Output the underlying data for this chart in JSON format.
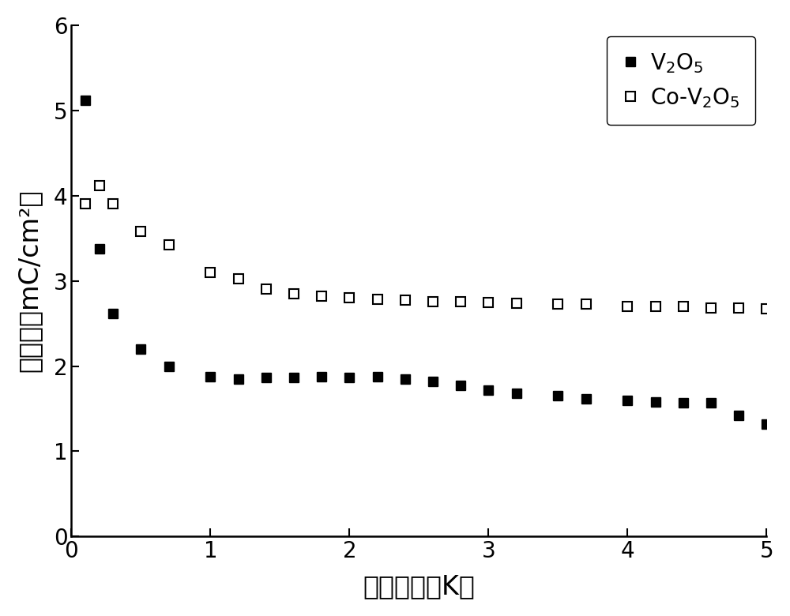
{
  "v2o5_x": [
    0.1,
    0.2,
    0.3,
    0.5,
    0.7,
    1.0,
    1.2,
    1.4,
    1.6,
    1.8,
    2.0,
    2.2,
    2.4,
    2.6,
    2.8,
    3.0,
    3.2,
    3.5,
    3.7,
    4.0,
    4.2,
    4.4,
    4.6,
    4.8,
    5.0
  ],
  "v2o5_y": [
    5.12,
    3.38,
    2.62,
    2.2,
    2.0,
    1.88,
    1.85,
    1.87,
    1.87,
    1.88,
    1.87,
    1.88,
    1.85,
    1.82,
    1.77,
    1.72,
    1.68,
    1.65,
    1.62,
    1.6,
    1.58,
    1.57,
    1.57,
    1.42,
    1.32
  ],
  "co_v2o5_x": [
    0.1,
    0.2,
    0.3,
    0.5,
    0.7,
    1.0,
    1.2,
    1.4,
    1.6,
    1.8,
    2.0,
    2.2,
    2.4,
    2.6,
    2.8,
    3.0,
    3.2,
    3.5,
    3.7,
    4.0,
    4.2,
    4.4,
    4.6,
    4.8,
    5.0
  ],
  "co_v2o5_y": [
    3.9,
    4.12,
    3.9,
    3.58,
    3.42,
    3.1,
    3.02,
    2.9,
    2.85,
    2.82,
    2.8,
    2.78,
    2.77,
    2.76,
    2.76,
    2.75,
    2.74,
    2.73,
    2.73,
    2.7,
    2.7,
    2.7,
    2.68,
    2.68,
    2.67
  ],
  "xlabel": "循环次数（K）",
  "ylabel": "电荷量（mC/cm²）",
  "xlim": [
    0,
    5
  ],
  "ylim": [
    0,
    6
  ],
  "xticks": [
    0,
    1,
    2,
    3,
    4,
    5
  ],
  "yticks": [
    0,
    1,
    2,
    3,
    4,
    5,
    6
  ],
  "legend_v2o5": "V$_2$O$_5$",
  "legend_co_v2o5": "Co-V$_2$O$_5$",
  "marker_size": 9,
  "background_color": "#ffffff",
  "plot_bg_color": "#ffffff",
  "font_size_label": 24,
  "font_size_tick": 20,
  "font_size_legend": 20
}
